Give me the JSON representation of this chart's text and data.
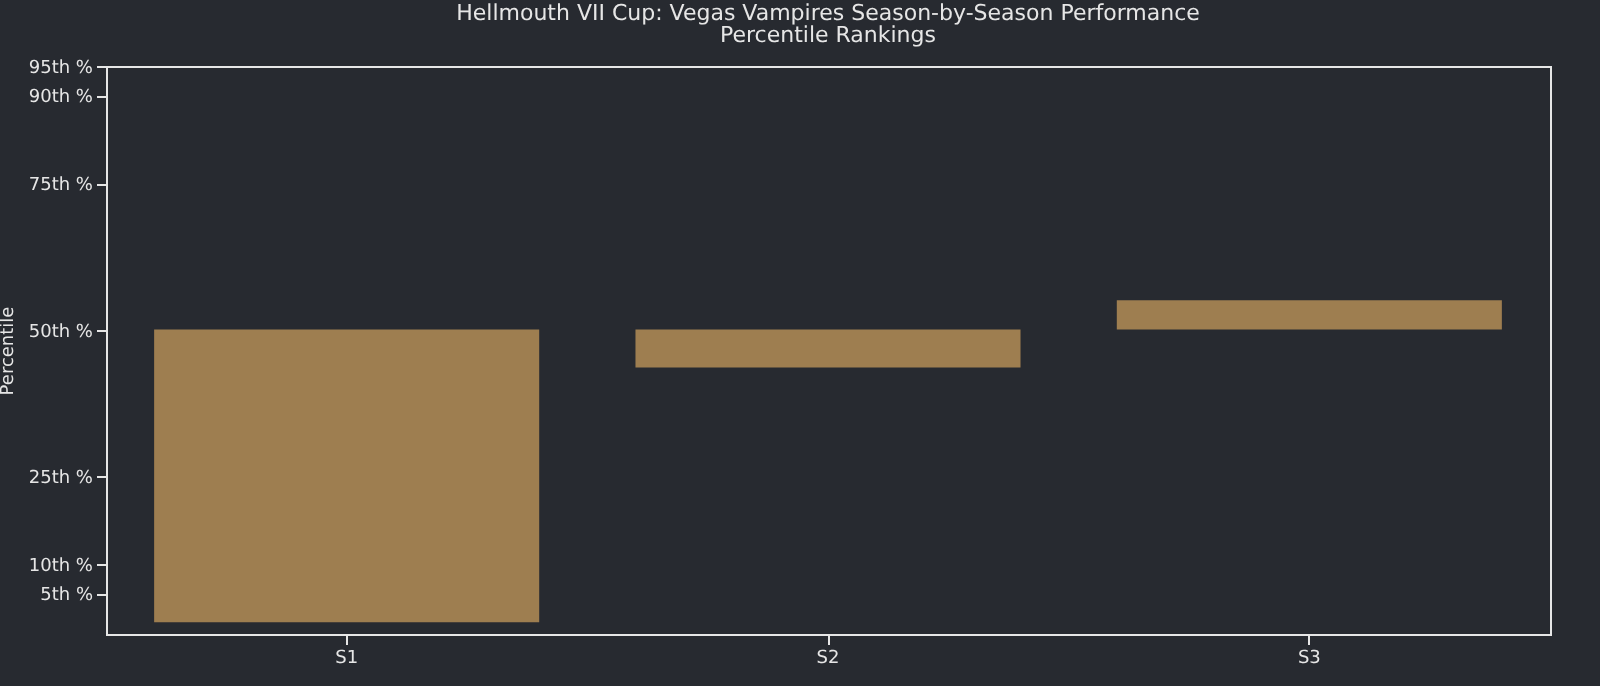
{
  "chart_data": {
    "type": "bar",
    "title": "Hellmouth VII Cup: Vegas Vampires Season-by-Season Performance",
    "subtitle": "Percentile Rankings",
    "ylabel": "Percentile",
    "categories": [
      "S1",
      "S2",
      "S3"
    ],
    "base": [
      0,
      50,
      50
    ],
    "values": [
      50,
      -6.5,
      5
    ],
    "color": "#9e7e50",
    "ylim": [
      -2,
      95
    ],
    "yticks": [
      {
        "value": 5,
        "label": "5th %"
      },
      {
        "value": 10,
        "label": "10th %"
      },
      {
        "value": 25,
        "label": "25th %"
      },
      {
        "value": 50,
        "label": "50th %"
      },
      {
        "value": 75,
        "label": "75th %"
      },
      {
        "value": 90,
        "label": "90th %"
      },
      {
        "value": 95,
        "label": "95th %"
      }
    ],
    "grid": false
  }
}
